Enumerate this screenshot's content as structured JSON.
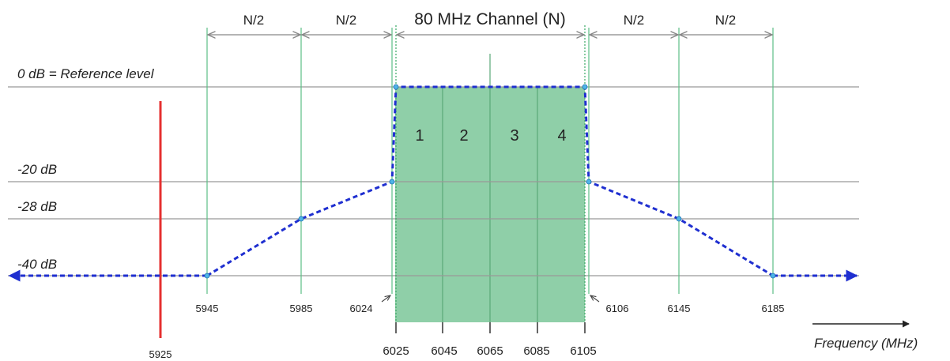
{
  "chart_data": {
    "type": "line",
    "title": "80 MHz Channel (N)",
    "xlabel": "Frequency (MHz)",
    "ylabel": "",
    "reference_label": "0 dB = Reference level",
    "level_labels": [
      "-20 dB",
      "-28 dB",
      "-40 dB"
    ],
    "span_labels": [
      "N/2",
      "N/2",
      "N/2",
      "N/2"
    ],
    "subchannel_labels": [
      "1",
      "2",
      "3",
      "4"
    ],
    "mask_points": [
      {
        "x": 5945,
        "y": -40
      },
      {
        "x": 5985,
        "y": -28
      },
      {
        "x": 6024,
        "y": -20
      },
      {
        "x": 6025,
        "y": 0
      },
      {
        "x": 6105,
        "y": 0
      },
      {
        "x": 6106,
        "y": -20
      },
      {
        "x": 6145,
        "y": -28
      },
      {
        "x": 6185,
        "y": -40
      }
    ],
    "outer_tick_labels": [
      "5945",
      "5985",
      "6024",
      "6106",
      "6145",
      "6185"
    ],
    "channel_tick_labels": [
      "6025",
      "6045",
      "6065",
      "6085",
      "6105"
    ],
    "band_edge": {
      "x": 5925,
      "label": "5925"
    },
    "colors": {
      "mask": "#1f2fd0",
      "channel_fill": "#8fcfa8",
      "grid_green": "#5cbf85",
      "band_edge": "#e53030",
      "level_line": "#999999"
    }
  }
}
